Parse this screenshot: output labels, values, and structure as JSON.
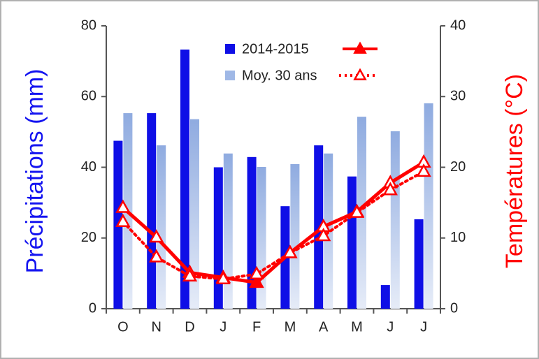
{
  "chart_data": {
    "type": "bar",
    "categories": [
      "O",
      "N",
      "D",
      "J",
      "F",
      "M",
      "A",
      "M",
      "J",
      "J"
    ],
    "y_label": "Précipitations (mm)",
    "y2_label": "Températures (°C)",
    "ylim": [
      0,
      80
    ],
    "yticks": [
      0,
      20,
      40,
      60,
      80
    ],
    "y2lim": [
      0,
      40
    ],
    "y2ticks": [
      0,
      10,
      20,
      30,
      40
    ],
    "legend": "top-center",
    "series": [
      {
        "name": "2014-2015",
        "color": "#0f0fe6",
        "values": [
          47.5,
          55.3,
          73.3,
          40,
          42.9,
          29,
          46.2,
          37.4,
          6.7,
          25.3
        ],
        "line": {
          "type": "line",
          "axis": "y2",
          "color": "#ff0000",
          "style": "solid",
          "marker": "filled",
          "values": [
            14.3,
            10.1,
            5.1,
            4.4,
            3.7,
            7.9,
            11.6,
            13.7,
            17.8,
            20.7
          ]
        }
      },
      {
        "name": "Moy. 30 ans",
        "color": "#9fb8e6",
        "values": [
          55.3,
          46.2,
          53.6,
          43.9,
          40.1,
          40.9,
          43.9,
          54.3,
          50.2,
          58.1
        ],
        "line": {
          "type": "line",
          "axis": "y2",
          "color": "#ff0000",
          "style": "dotted",
          "marker": "open",
          "values": [
            12.3,
            7.3,
            4.6,
            4.2,
            4.9,
            7.9,
            10.3,
            13.6,
            16.8,
            19.4
          ]
        }
      }
    ]
  }
}
